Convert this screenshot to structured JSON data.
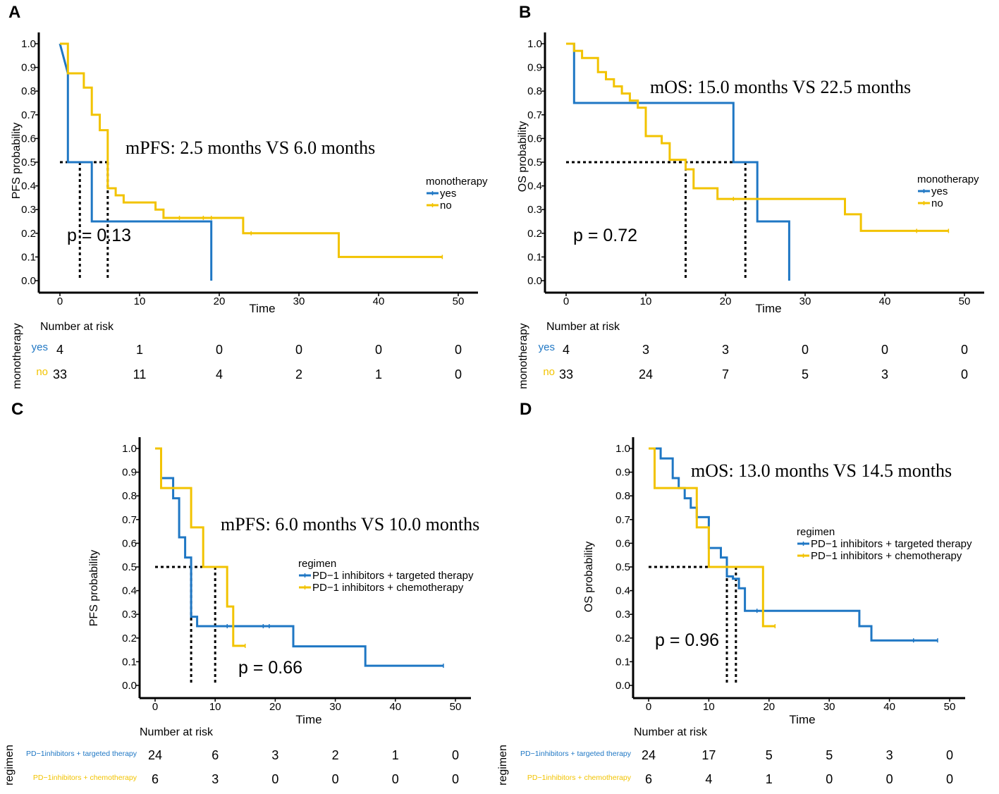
{
  "colors": {
    "yes": "#1f77c4",
    "no": "#f2c300",
    "axis": "#000000",
    "ref": "#000000"
  },
  "risk_table_title": "Number at risk",
  "chart_data": [
    {
      "panel_label": "A",
      "type": "line",
      "subtype": "kaplan-meier",
      "ylabel": "PFS probability",
      "xlabel": "Time",
      "xlim": [
        0,
        50
      ],
      "ylim": [
        0,
        1
      ],
      "xticks": [
        "0",
        "10",
        "20",
        "30",
        "40",
        "50"
      ],
      "yticks": [
        "0.0",
        "0.1",
        "0.2",
        "0.3",
        "0.4",
        "0.5",
        "0.6",
        "0.7",
        "0.8",
        "0.9",
        "1.0"
      ],
      "annotation": "mPFS: 2.5 months VS 6.0 months",
      "pvalue": "p = 0.13",
      "legend_title": "monotherapy",
      "medians": [
        2.5,
        6.0
      ],
      "series": [
        {
          "name": "yes",
          "risk_label": "yes",
          "color_key": "yes",
          "steps": [
            [
              0,
              1
            ],
            [
              1,
              0.875
            ],
            [
              1,
              0.5
            ],
            [
              4,
              0.5
            ],
            [
              4,
              0.25
            ],
            [
              19,
              0.25
            ],
            [
              19,
              0
            ]
          ],
          "censors": [],
          "risk": [
            "4",
            "1",
            "0",
            "0",
            "0",
            "0"
          ]
        },
        {
          "name": "no",
          "risk_label": "no",
          "color_key": "no",
          "steps": [
            [
              0,
              1
            ],
            [
              1,
              1
            ],
            [
              1,
              0.875
            ],
            [
              3,
              0.875
            ],
            [
              3,
              0.815
            ],
            [
              4,
              0.815
            ],
            [
              4,
              0.7
            ],
            [
              5,
              0.7
            ],
            [
              5,
              0.635
            ],
            [
              6,
              0.635
            ],
            [
              6,
              0.39
            ],
            [
              7,
              0.39
            ],
            [
              7,
              0.36
            ],
            [
              8,
              0.36
            ],
            [
              8,
              0.33
            ],
            [
              12,
              0.33
            ],
            [
              12,
              0.3
            ],
            [
              13,
              0.3
            ],
            [
              13,
              0.265
            ],
            [
              23,
              0.265
            ],
            [
              23,
              0.2
            ],
            [
              35,
              0.2
            ],
            [
              35,
              0.1
            ],
            [
              48,
              0.1
            ]
          ],
          "censors": [
            [
              15,
              0.265
            ],
            [
              18,
              0.265
            ],
            [
              19,
              0.265
            ],
            [
              24,
              0.2
            ],
            [
              48,
              0.1
            ]
          ],
          "risk": [
            "33",
            "11",
            "4",
            "2",
            "1",
            "0"
          ]
        }
      ]
    },
    {
      "panel_label": "B",
      "type": "line",
      "subtype": "kaplan-meier",
      "ylabel": "OS probability",
      "xlabel": "Time",
      "xlim": [
        0,
        50
      ],
      "ylim": [
        0,
        1
      ],
      "xticks": [
        "0",
        "10",
        "20",
        "30",
        "40",
        "50"
      ],
      "yticks": [
        "0.0",
        "0.1",
        "0.2",
        "0.3",
        "0.4",
        "0.5",
        "0.6",
        "0.7",
        "0.8",
        "0.9",
        "1.0"
      ],
      "annotation": "mOS: 15.0 months VS 22.5 months",
      "pvalue": "p = 0.72",
      "legend_title": "monotherapy",
      "medians": [
        15.0,
        22.5
      ],
      "series": [
        {
          "name": "yes",
          "risk_label": "yes",
          "color_key": "yes",
          "steps": [
            [
              0,
              1
            ],
            [
              1,
              1
            ],
            [
              1,
              0.75
            ],
            [
              21,
              0.75
            ],
            [
              21,
              0.5
            ],
            [
              24,
              0.5
            ],
            [
              24,
              0.25
            ],
            [
              28,
              0.25
            ],
            [
              28,
              0
            ]
          ],
          "censors": [],
          "risk": [
            "4",
            "3",
            "3",
            "0",
            "0",
            "0"
          ]
        },
        {
          "name": "no",
          "risk_label": "no",
          "color_key": "no",
          "steps": [
            [
              0,
              1
            ],
            [
              1,
              1
            ],
            [
              1,
              0.97
            ],
            [
              2,
              0.97
            ],
            [
              2,
              0.94
            ],
            [
              4,
              0.94
            ],
            [
              4,
              0.88
            ],
            [
              5,
              0.88
            ],
            [
              5,
              0.85
            ],
            [
              6,
              0.85
            ],
            [
              6,
              0.82
            ],
            [
              7,
              0.82
            ],
            [
              7,
              0.79
            ],
            [
              8,
              0.79
            ],
            [
              8,
              0.76
            ],
            [
              9,
              0.76
            ],
            [
              9,
              0.73
            ],
            [
              10,
              0.73
            ],
            [
              10,
              0.61
            ],
            [
              12,
              0.61
            ],
            [
              12,
              0.58
            ],
            [
              13,
              0.58
            ],
            [
              13,
              0.51
            ],
            [
              15,
              0.51
            ],
            [
              15,
              0.47
            ],
            [
              16,
              0.47
            ],
            [
              16,
              0.39
            ],
            [
              19,
              0.39
            ],
            [
              19,
              0.345
            ],
            [
              35,
              0.345
            ],
            [
              35,
              0.28
            ],
            [
              37,
              0.28
            ],
            [
              37,
              0.21
            ],
            [
              48,
              0.21
            ]
          ],
          "censors": [
            [
              21,
              0.345
            ],
            [
              44,
              0.21
            ],
            [
              48,
              0.21
            ]
          ],
          "risk": [
            "33",
            "24",
            "7",
            "5",
            "3",
            "0"
          ]
        }
      ]
    },
    {
      "panel_label": "C",
      "type": "line",
      "subtype": "kaplan-meier",
      "ylabel": "PFS probability",
      "xlabel": "Time",
      "xlim": [
        0,
        50
      ],
      "ylim": [
        0,
        1
      ],
      "xticks": [
        "0",
        "10",
        "20",
        "30",
        "40",
        "50"
      ],
      "yticks": [
        "0.0",
        "0.1",
        "0.2",
        "0.3",
        "0.4",
        "0.5",
        "0.6",
        "0.7",
        "0.8",
        "0.9",
        "1.0"
      ],
      "annotation": "mPFS: 6.0 months VS 10.0 months",
      "pvalue": "p = 0.66",
      "legend_title": "regimen",
      "medians": [
        6.0,
        10.0
      ],
      "series": [
        {
          "name": "PD−1 inhibitors + targeted therapy",
          "risk_label": "PD−1inhibitors + targeted therapy",
          "color_key": "yes",
          "steps": [
            [
              0,
              1
            ],
            [
              1,
              1
            ],
            [
              1,
              0.875
            ],
            [
              3,
              0.875
            ],
            [
              3,
              0.79
            ],
            [
              4,
              0.79
            ],
            [
              4,
              0.625
            ],
            [
              5,
              0.625
            ],
            [
              5,
              0.54
            ],
            [
              6,
              0.54
            ],
            [
              6,
              0.29
            ],
            [
              7,
              0.29
            ],
            [
              7,
              0.25
            ],
            [
              23,
              0.25
            ],
            [
              23,
              0.165
            ],
            [
              35,
              0.165
            ],
            [
              35,
              0.083
            ],
            [
              48,
              0.083
            ]
          ],
          "censors": [
            [
              12,
              0.25
            ],
            [
              18,
              0.25
            ],
            [
              19,
              0.25
            ],
            [
              48,
              0.083
            ]
          ],
          "risk": [
            "24",
            "6",
            "3",
            "2",
            "1",
            "0"
          ]
        },
        {
          "name": "PD−1 inhibitors + chemotherapy",
          "risk_label": "PD−1inhibitors + chemotherapy",
          "color_key": "no",
          "steps": [
            [
              0,
              1
            ],
            [
              1,
              1
            ],
            [
              1,
              0.833
            ],
            [
              6,
              0.833
            ],
            [
              6,
              0.667
            ],
            [
              8,
              0.667
            ],
            [
              8,
              0.5
            ],
            [
              12,
              0.5
            ],
            [
              12,
              0.333
            ],
            [
              13,
              0.333
            ],
            [
              13,
              0.167
            ],
            [
              15,
              0.167
            ]
          ],
          "censors": [
            [
              15,
              0.167
            ]
          ],
          "risk": [
            "6",
            "3",
            "0",
            "0",
            "0",
            "0"
          ]
        }
      ]
    },
    {
      "panel_label": "D",
      "type": "line",
      "subtype": "kaplan-meier",
      "ylabel": "OS probability",
      "xlabel": "Time",
      "xlim": [
        0,
        50
      ],
      "ylim": [
        0,
        1
      ],
      "xticks": [
        "0",
        "10",
        "20",
        "30",
        "40",
        "50"
      ],
      "yticks": [
        "0.0",
        "0.1",
        "0.2",
        "0.3",
        "0.4",
        "0.5",
        "0.6",
        "0.7",
        "0.8",
        "0.9",
        "1.0"
      ],
      "annotation": "mOS: 13.0 months VS 14.5 months",
      "pvalue": "p = 0.96",
      "legend_title": "regimen",
      "medians": [
        13.0,
        14.5
      ],
      "series": [
        {
          "name": "PD−1 inhibitors + targeted therapy",
          "risk_label": "PD−1inhibitors + targeted therapy",
          "color_key": "yes",
          "steps": [
            [
              0,
              1
            ],
            [
              2,
              1
            ],
            [
              2,
              0.958
            ],
            [
              4,
              0.958
            ],
            [
              4,
              0.875
            ],
            [
              5,
              0.875
            ],
            [
              5,
              0.833
            ],
            [
              6,
              0.833
            ],
            [
              6,
              0.79
            ],
            [
              7,
              0.79
            ],
            [
              7,
              0.75
            ],
            [
              8,
              0.75
            ],
            [
              8,
              0.71
            ],
            [
              10,
              0.71
            ],
            [
              10,
              0.58
            ],
            [
              12,
              0.58
            ],
            [
              12,
              0.54
            ],
            [
              13,
              0.54
            ],
            [
              13,
              0.46
            ],
            [
              14,
              0.46
            ],
            [
              14,
              0.45
            ],
            [
              15,
              0.45
            ],
            [
              15,
              0.41
            ],
            [
              16,
              0.41
            ],
            [
              16,
              0.315
            ],
            [
              35,
              0.315
            ],
            [
              35,
              0.25
            ],
            [
              37,
              0.25
            ],
            [
              37,
              0.19
            ],
            [
              48,
              0.19
            ]
          ],
          "censors": [
            [
              18,
              0.315
            ],
            [
              44,
              0.19
            ],
            [
              48,
              0.19
            ]
          ],
          "risk": [
            "24",
            "17",
            "5",
            "5",
            "3",
            "0"
          ]
        },
        {
          "name": "PD−1 inhibitors + chemotherapy",
          "risk_label": "PD−1inhibitors + chemotherapy",
          "color_key": "no",
          "steps": [
            [
              0,
              1
            ],
            [
              1,
              1
            ],
            [
              1,
              0.833
            ],
            [
              8,
              0.833
            ],
            [
              8,
              0.667
            ],
            [
              10,
              0.667
            ],
            [
              10,
              0.5
            ],
            [
              19,
              0.5
            ],
            [
              19,
              0.25
            ],
            [
              21,
              0.25
            ]
          ],
          "censors": [
            [
              21,
              0.25
            ]
          ],
          "risk": [
            "6",
            "4",
            "1",
            "0",
            "0",
            "0"
          ]
        }
      ]
    }
  ]
}
